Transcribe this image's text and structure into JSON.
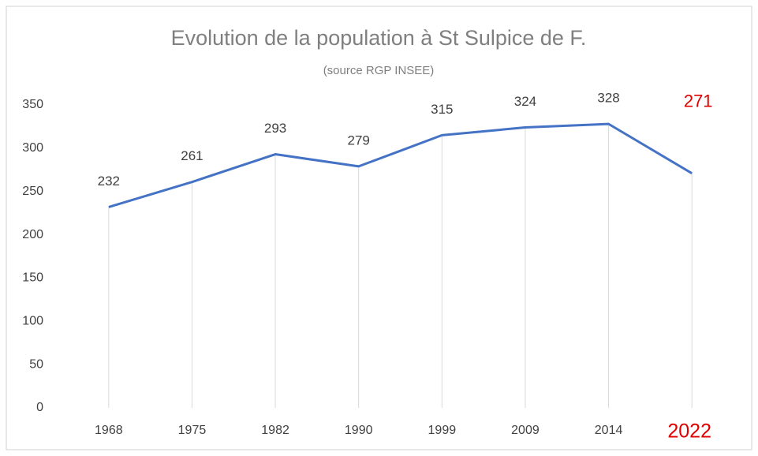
{
  "chart_data": {
    "type": "line",
    "title": "Evolution de la population à St Sulpice de F.",
    "subtitle": "(source RGP INSEE)",
    "categories": [
      "1968",
      "1975",
      "1982",
      "1990",
      "1999",
      "2009",
      "2014",
      "2022"
    ],
    "series": [
      {
        "name": "Population",
        "color": "#4472c4",
        "values": [
          232,
          261,
          293,
          279,
          315,
          324,
          328,
          271
        ]
      }
    ],
    "label_colors": [
      "#404040",
      "#404040",
      "#404040",
      "#404040",
      "#404040",
      "#404040",
      "#404040",
      "#e00000"
    ],
    "ylim": [
      0,
      350
    ],
    "yticks": [
      0,
      50,
      100,
      150,
      200,
      250,
      300,
      350
    ],
    "drop_lines": true
  }
}
